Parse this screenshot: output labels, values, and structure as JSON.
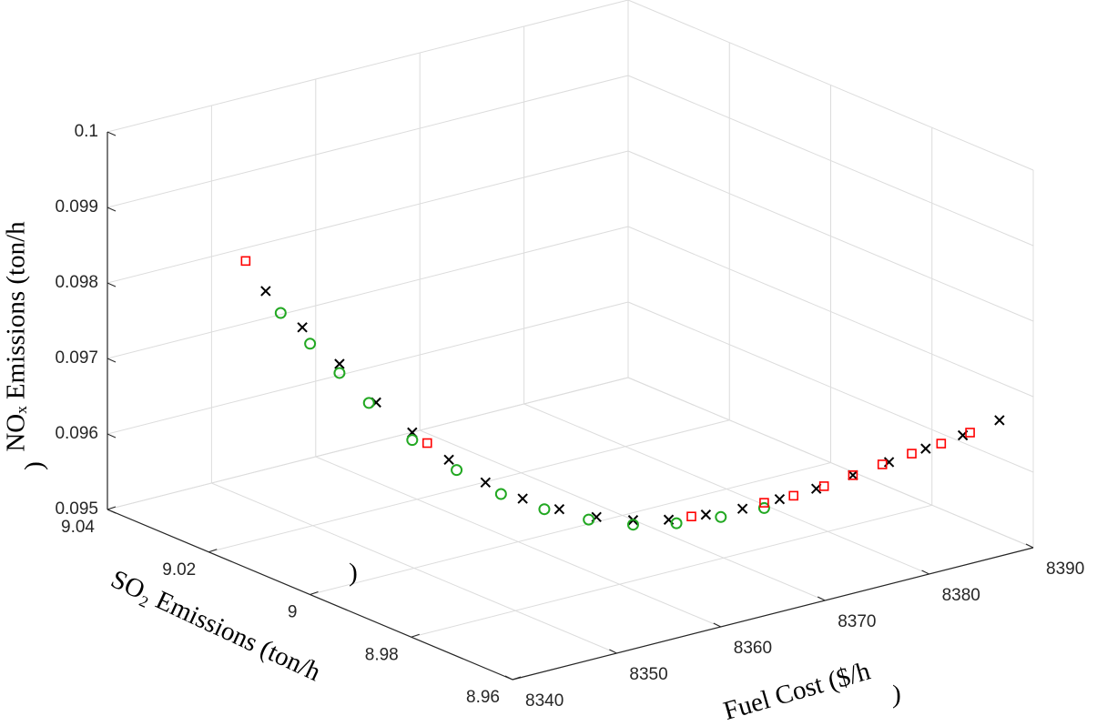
{
  "chart_data": {
    "type": "scatter3d",
    "xlabel": [
      "Fuel Cost ($/h",
      ")"
    ],
    "ylabel": [
      "SO₂ Emissions (ton/h",
      ")"
    ],
    "zlabel": [
      "NOₓ Emissions (ton/h",
      ")"
    ],
    "xlim": [
      8340,
      8390
    ],
    "xticks": [
      8340,
      8350,
      8360,
      8370,
      8380,
      8390
    ],
    "ylim": [
      8.96,
      9.04
    ],
    "yticks": [
      8.96,
      8.98,
      9,
      9.02,
      9.04
    ],
    "zlim": [
      0.095,
      0.1
    ],
    "zticks": [
      0.095,
      0.096,
      0.097,
      0.098,
      0.099,
      0.1
    ],
    "grid": true,
    "series": [
      {
        "marker": "x",
        "color": "#000000",
        "x": [
          8341.0,
          8343.4,
          8345.8,
          8348.2,
          8350.5,
          8352.9,
          8355.3,
          8357.7,
          8360.1,
          8362.5,
          8364.9,
          8367.2,
          8369.6,
          8372.0,
          8374.4,
          8376.8,
          8379.2,
          8381.5,
          8383.9,
          8386.3,
          8388.7
        ],
        "y": [
          9.0108,
          9.0085,
          9.0061,
          9.0038,
          9.0014,
          8.9991,
          8.9968,
          8.9944,
          8.9921,
          8.9897,
          8.9874,
          8.9851,
          8.9827,
          8.9804,
          8.978,
          8.9757,
          8.9734,
          8.971,
          8.9687,
          8.9663,
          8.964
        ],
        "z": [
          0.09868,
          0.09818,
          0.09768,
          0.09715,
          0.09674,
          0.09636,
          0.09604,
          0.09581,
          0.09565,
          0.09553,
          0.09547,
          0.09546,
          0.09551,
          0.09557,
          0.09568,
          0.0958,
          0.09596,
          0.09612,
          0.09628,
          0.09644,
          0.09662
        ]
      },
      {
        "marker": "o",
        "color": "#22a822",
        "x": [
          8342.0,
          8343.9,
          8345.8,
          8347.7,
          8350.5,
          8353.4,
          8356.3,
          8359.1,
          8362.0,
          8364.9,
          8367.7,
          8370.6,
          8373.4
        ],
        "y": [
          9.0099,
          9.008,
          9.0061,
          9.0042,
          9.0014,
          8.9986,
          8.9958,
          8.993,
          8.9902,
          8.9874,
          8.9846,
          8.9818,
          8.979
        ],
        "z": [
          0.09838,
          0.09796,
          0.09756,
          0.09715,
          0.09664,
          0.09622,
          0.09588,
          0.09566,
          0.0955,
          0.09541,
          0.09541,
          0.09547,
          0.09557
        ]
      },
      {
        "marker": "s",
        "color": "#ff0000",
        "x": [
          8340,
          8351.5,
          8368.7,
          8373.4,
          8375.3,
          8377.3,
          8379.2,
          8381.1,
          8383.0,
          8384.9,
          8386.8
        ],
        "y": [
          9.0127,
          9.0005,
          8.9837,
          8.979,
          8.9771,
          8.9752,
          8.9734,
          8.9715,
          8.9696,
          8.9677,
          8.9659
        ],
        "z": [
          0.09906,
          0.09659,
          0.09549,
          0.09564,
          0.09572,
          0.09583,
          0.09596,
          0.09609,
          0.09622,
          0.09634,
          0.09647
        ]
      }
    ]
  }
}
